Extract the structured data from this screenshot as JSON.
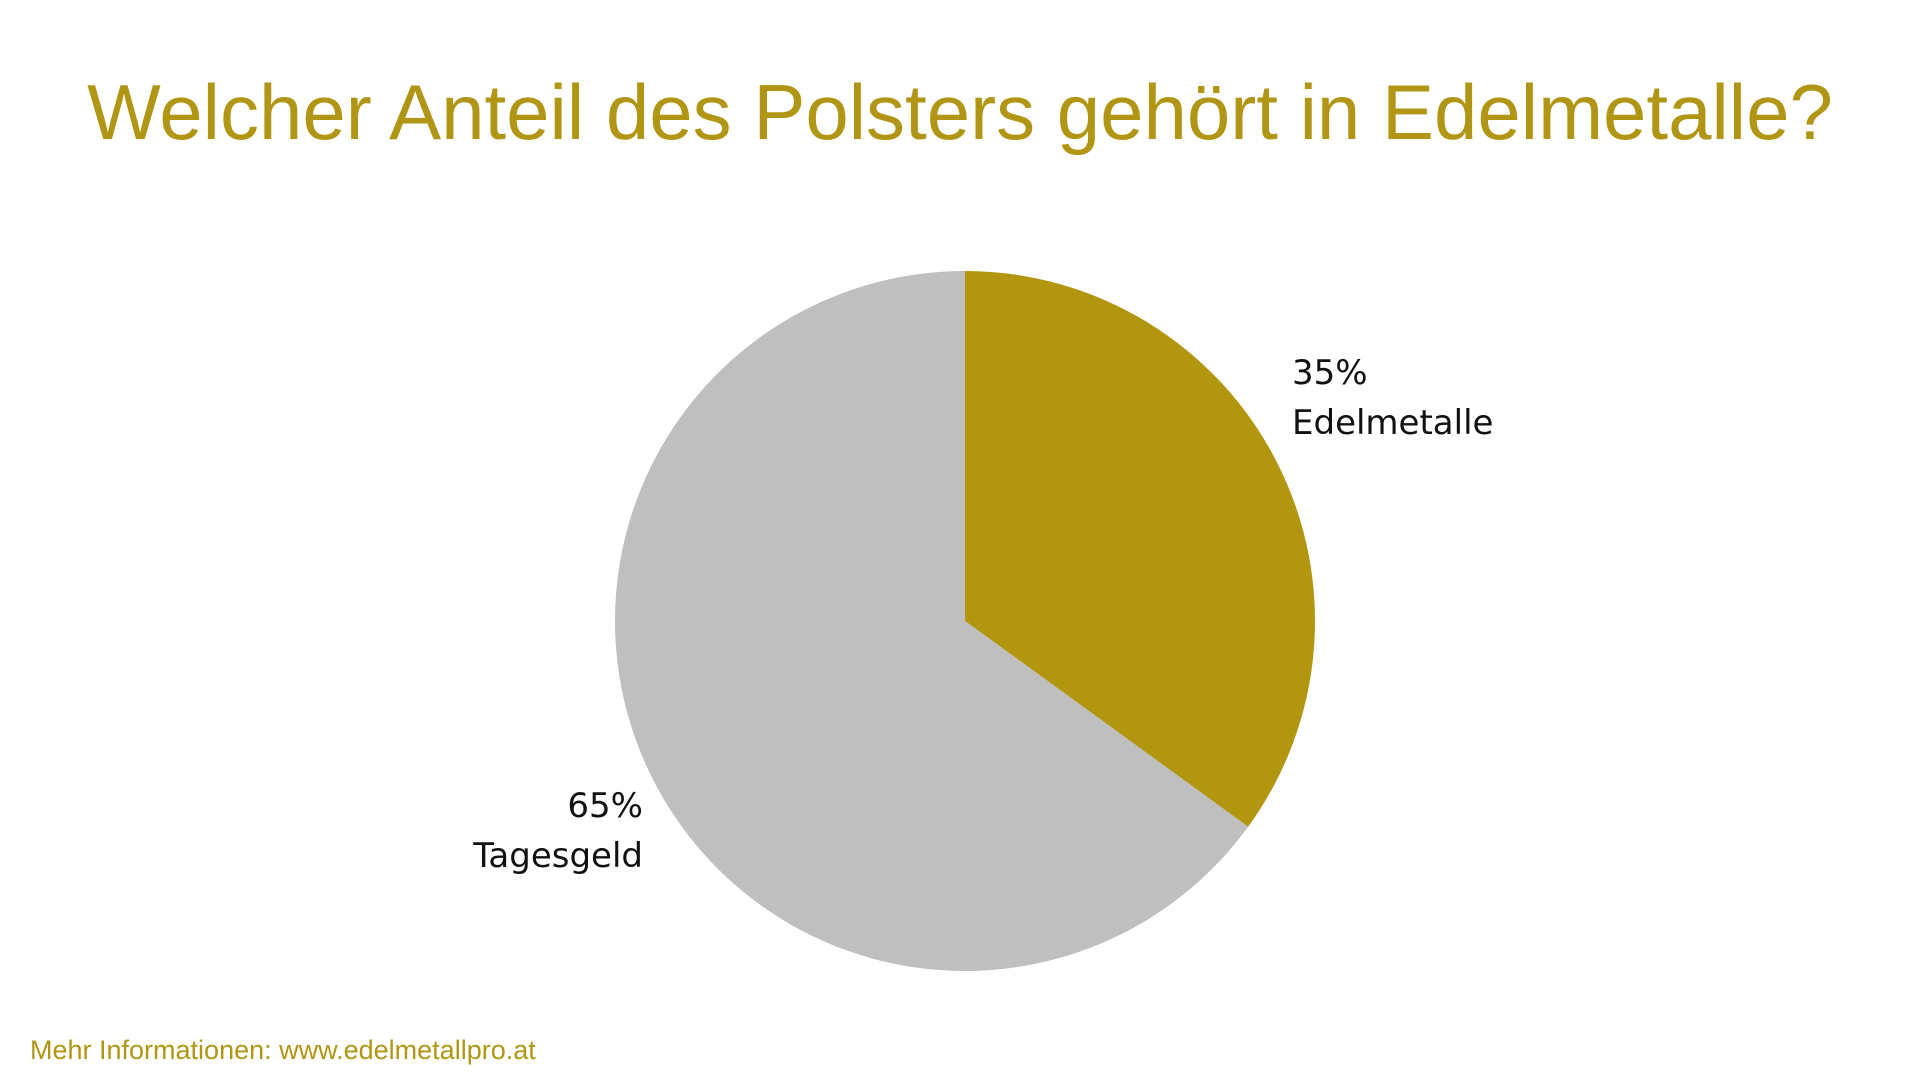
{
  "chart_data": {
    "type": "pie",
    "title": "Welcher Anteil des Polsters gehört in Edelmetalle?",
    "slices": [
      {
        "label": "Edelmetalle",
        "value": 35,
        "value_label": "35%",
        "color": "#b3960f"
      },
      {
        "label": "Tagesgeld",
        "value": 65,
        "value_label": "65%",
        "color": "#bfbfbf"
      }
    ],
    "start_angle": "12 o'clock",
    "direction": "clockwise",
    "legend": "none"
  },
  "footer": {
    "text": "Mehr Informationen: www.edelmetallpro.at"
  },
  "colors": {
    "accent": "#b09614",
    "label_text": "#111111",
    "background": "#ffffff"
  }
}
